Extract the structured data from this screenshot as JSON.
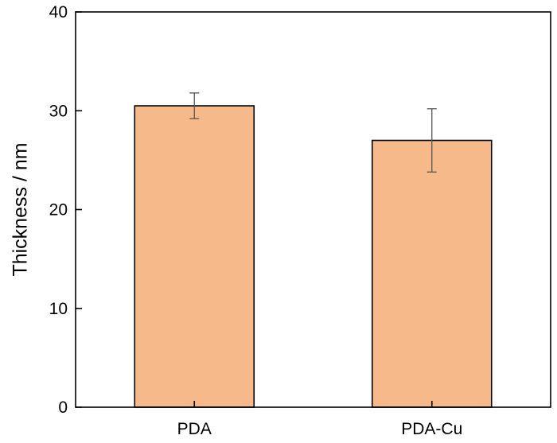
{
  "chart_data": {
    "type": "bar",
    "categories": [
      "PDA",
      "PDA-Cu"
    ],
    "values": [
      30.5,
      27.0
    ],
    "errors": [
      1.3,
      3.2
    ],
    "title": "",
    "xlabel": "",
    "ylabel": "Thickness / nm",
    "ylim": [
      0,
      40
    ],
    "yticks": [
      0,
      10,
      20,
      30,
      40
    ],
    "grid": false,
    "bar_color": "#F6BA8A",
    "bar_edge_color": "#000000",
    "error_bar_color": "#555555"
  }
}
